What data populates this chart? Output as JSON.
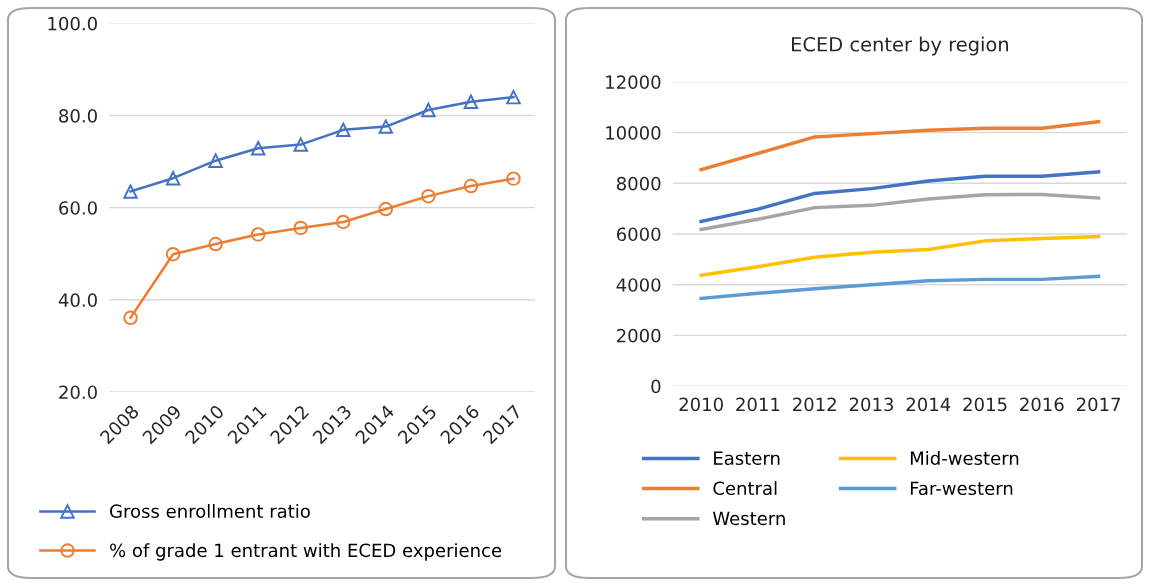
{
  "chart_data": [
    {
      "type": "line",
      "categories": [
        "2008",
        "2009",
        "2010",
        "2011",
        "2012",
        "2013",
        "2014",
        "2015",
        "2016",
        "2017"
      ],
      "ylim": [
        20,
        100
      ],
      "yticks": [
        {
          "value": 20,
          "label": "20.0"
        },
        {
          "value": 40,
          "label": "40.0"
        },
        {
          "value": 60,
          "label": "60.0"
        },
        {
          "value": 80,
          "label": "80.0"
        },
        {
          "value": 100,
          "label": "100.0"
        }
      ],
      "grid": "y",
      "legend": "bottom",
      "series": [
        {
          "name": "Gross enrollment ratio",
          "color": "#4472c4",
          "marker": "triangle",
          "values": [
            63.5,
            66.4,
            70.2,
            72.9,
            73.7,
            76.9,
            77.6,
            81.2,
            83.0,
            84.0
          ]
        },
        {
          "name": "% of grade 1 entrant with ECED experience",
          "color": "#ed7d31",
          "marker": "circle",
          "values": [
            36.1,
            49.9,
            52.1,
            54.2,
            55.6,
            56.9,
            59.7,
            62.5,
            64.7,
            66.3
          ]
        }
      ]
    },
    {
      "type": "line",
      "title": "ECED center by region",
      "categories": [
        "2010",
        "2011",
        "2012",
        "2013",
        "2014",
        "2015",
        "2016",
        "2017"
      ],
      "ylim": [
        0,
        12000
      ],
      "yticks": [
        0,
        2000,
        4000,
        6000,
        8000,
        10000,
        12000
      ],
      "grid": "y",
      "legend": "bottom",
      "marker": "none",
      "series": [
        {
          "name": "Eastern",
          "color": "#4472c4",
          "values": [
            6500,
            6980,
            7600,
            7790,
            8090,
            8280,
            8280,
            8450
          ]
        },
        {
          "name": "Central",
          "color": "#ed7d31",
          "values": [
            8540,
            9180,
            9830,
            9960,
            10090,
            10170,
            10170,
            10430
          ]
        },
        {
          "name": "Western",
          "color": "#a5a5a5",
          "values": [
            6180,
            6580,
            7040,
            7130,
            7380,
            7550,
            7560,
            7420
          ]
        },
        {
          "name": "Mid-western",
          "color": "#ffc000",
          "values": [
            4370,
            4710,
            5080,
            5280,
            5390,
            5730,
            5820,
            5900
          ]
        },
        {
          "name": "Far-western",
          "color": "#5b9bd5",
          "values": [
            3460,
            3660,
            3840,
            4000,
            4160,
            4210,
            4210,
            4330
          ]
        }
      ]
    }
  ]
}
